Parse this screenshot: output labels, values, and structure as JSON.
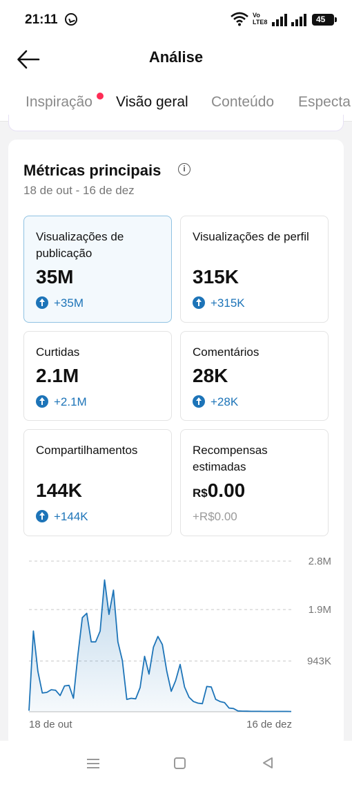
{
  "status_bar": {
    "time": "21:11",
    "volte_line1": "Vo",
    "volte_line2": "LTE8",
    "battery": "45",
    "icons": [
      "whatsapp-icon",
      "wifi-icon",
      "volte-icon",
      "signal-icon",
      "signal-icon",
      "battery-icon"
    ]
  },
  "header": {
    "title": "Análise",
    "back_icon": "arrow-left-icon"
  },
  "tabs": [
    {
      "label": "Inspiração",
      "has_dot": true
    },
    {
      "label": "Visão geral",
      "active": true
    },
    {
      "label": "Conteúdo"
    },
    {
      "label": "Especta"
    }
  ],
  "metrics": {
    "title": "Métricas principais",
    "date_range": "18 de out - 16 de dez",
    "cards": [
      {
        "label": "Visualizações de publicação",
        "value": "35M",
        "change": "+35M",
        "selected": true
      },
      {
        "label": "Visualizações de perfil",
        "value": "315K",
        "change": "+315K"
      },
      {
        "label": "Curtidas",
        "value": "2.1M",
        "change": "+2.1M"
      },
      {
        "label": "Comentários",
        "value": "28K",
        "change": "+28K"
      },
      {
        "label": "Compartilhamentos",
        "value": "144K",
        "change": "+144K"
      },
      {
        "label": "Recompensas estimadas",
        "value_currency": "R$",
        "value": "0.00",
        "change": "+R$0.00"
      }
    ]
  },
  "chart_data": {
    "type": "area",
    "x_start_label": "18 de out",
    "x_end_label": "16 de dez",
    "y_tick_labels": [
      "2.8M",
      "1.9M",
      "943K"
    ],
    "y_ticks": [
      2800000,
      1900000,
      943000
    ],
    "ylim": [
      0,
      2800000
    ],
    "grid": true,
    "color": "#1d74b8",
    "values": [
      20000,
      1500000,
      750000,
      350000,
      360000,
      410000,
      400000,
      300000,
      480000,
      490000,
      250000,
      1050000,
      1750000,
      1830000,
      1300000,
      1300000,
      1500000,
      2450000,
      1810000,
      2260000,
      1300000,
      950000,
      230000,
      250000,
      240000,
      450000,
      1030000,
      700000,
      1200000,
      1400000,
      1250000,
      750000,
      380000,
      580000,
      880000,
      460000,
      270000,
      190000,
      160000,
      150000,
      470000,
      460000,
      230000,
      190000,
      170000,
      70000,
      60000,
      15000,
      12000,
      10000,
      8000,
      8000,
      8000,
      7000,
      7000,
      6000,
      6000,
      6000,
      6000,
      5000
    ]
  },
  "nav_bar": {
    "icons": [
      "menu-icon",
      "home-icon",
      "back-icon"
    ]
  }
}
